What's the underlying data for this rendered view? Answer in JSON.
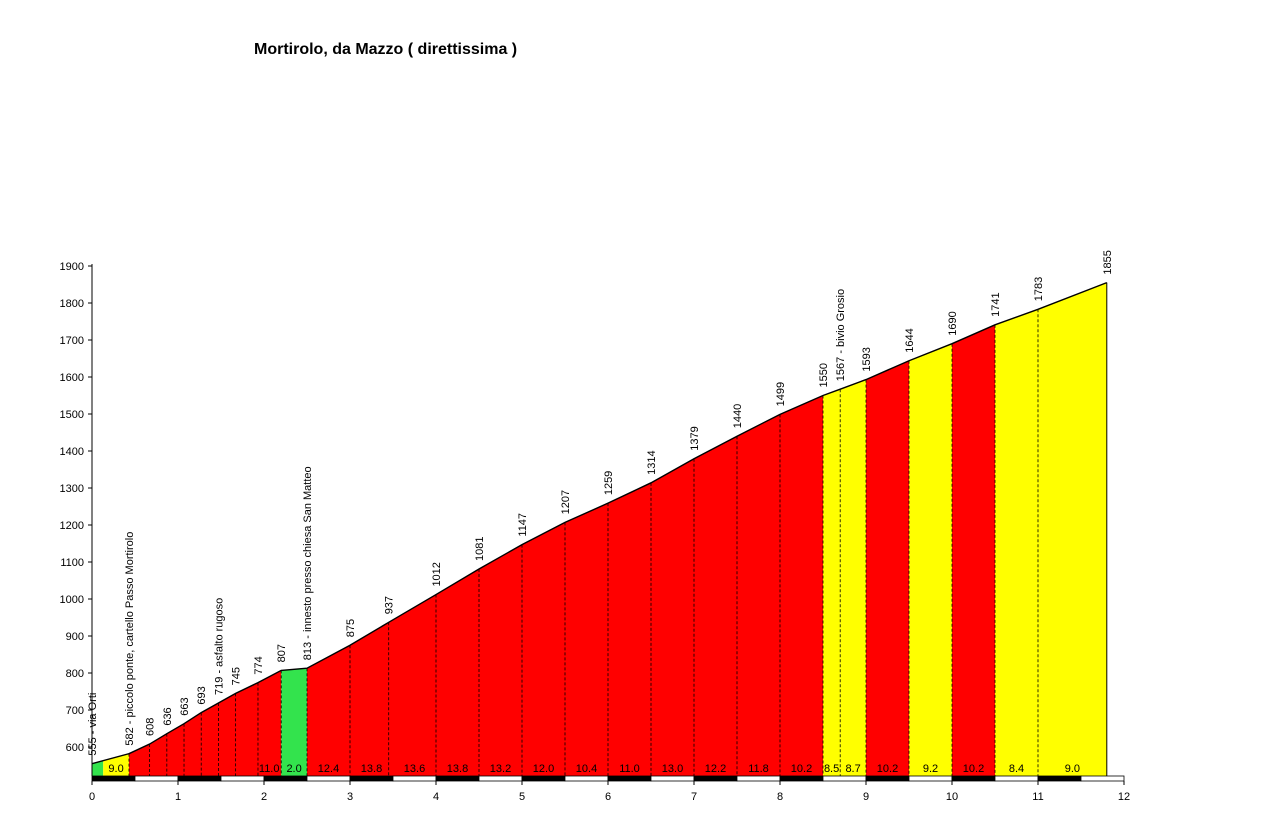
{
  "chart_data": {
    "type": "area",
    "title": "Mortirolo, da Mazzo ( direttissima )",
    "xlim": [
      0,
      12
    ],
    "ylim": [
      515,
      1900
    ],
    "x_ticks": [
      "0",
      "1",
      "2",
      "3",
      "4",
      "5",
      "6",
      "7",
      "8",
      "9",
      "10",
      "11",
      "12"
    ],
    "y_ticks": [
      "600",
      "700",
      "800",
      "900",
      "1000",
      "1100",
      "1200",
      "1300",
      "1400",
      "1500",
      "1600",
      "1700",
      "1800",
      "1900"
    ],
    "grid": false,
    "colors": {
      "green": "#33e34d",
      "yellow": "#ffff00",
      "red": "#ff0000",
      "outline": "#000000"
    },
    "points": [
      {
        "x": 0.0,
        "y": 555,
        "label": "555 - via Orti"
      },
      {
        "x": 0.43,
        "y": 582,
        "label": "582 - piccolo ponte, cartello Passo Mortirolo"
      },
      {
        "x": 0.67,
        "y": 608,
        "label": "608"
      },
      {
        "x": 0.87,
        "y": 636,
        "label": "636"
      },
      {
        "x": 1.07,
        "y": 663,
        "label": "663"
      },
      {
        "x": 1.27,
        "y": 693,
        "label": "693"
      },
      {
        "x": 1.47,
        "y": 719,
        "label": "719 - asfalto rugoso"
      },
      {
        "x": 1.67,
        "y": 745,
        "label": "745"
      },
      {
        "x": 1.93,
        "y": 774,
        "label": "774"
      },
      {
        "x": 2.2,
        "y": 807,
        "label": "807"
      },
      {
        "x": 2.5,
        "y": 813,
        "label": "813 - innesto presso chiesa San Matteo"
      },
      {
        "x": 3.0,
        "y": 875,
        "label": "875"
      },
      {
        "x": 3.45,
        "y": 937,
        "label": "937"
      },
      {
        "x": 4.0,
        "y": 1012,
        "label": "1012"
      },
      {
        "x": 4.5,
        "y": 1081,
        "label": "1081"
      },
      {
        "x": 5.0,
        "y": 1147,
        "label": "1147"
      },
      {
        "x": 5.5,
        "y": 1207,
        "label": "1207"
      },
      {
        "x": 6.0,
        "y": 1259,
        "label": "1259"
      },
      {
        "x": 6.5,
        "y": 1314,
        "label": "1314"
      },
      {
        "x": 7.0,
        "y": 1379,
        "label": "1379"
      },
      {
        "x": 7.5,
        "y": 1440,
        "label": "1440"
      },
      {
        "x": 8.0,
        "y": 1499,
        "label": "1499"
      },
      {
        "x": 8.5,
        "y": 1550,
        "label": "1550"
      },
      {
        "x": 8.7,
        "y": 1567,
        "label": "1567 - bivio Grosio"
      },
      {
        "x": 9.0,
        "y": 1593,
        "label": "1593"
      },
      {
        "x": 9.5,
        "y": 1644,
        "label": "1644"
      },
      {
        "x": 10.0,
        "y": 1690,
        "label": "1690"
      },
      {
        "x": 10.5,
        "y": 1741,
        "label": "1741"
      },
      {
        "x": 11.0,
        "y": 1783,
        "label": "1783"
      },
      {
        "x": 11.8,
        "y": 1855,
        "label": "1855"
      }
    ],
    "segments": [
      {
        "start": 0.0,
        "end": 0.13,
        "color": "green",
        "gradient": ""
      },
      {
        "start": 0.13,
        "end": 0.43,
        "color": "yellow",
        "gradient": "9.0"
      },
      {
        "start": 0.43,
        "end": 2.2,
        "color": "red",
        "gradient": "11.0"
      },
      {
        "start": 2.2,
        "end": 2.5,
        "color": "green",
        "gradient": "2.0"
      },
      {
        "start": 2.5,
        "end": 3.0,
        "color": "red",
        "gradient": "12.4"
      },
      {
        "start": 3.0,
        "end": 3.5,
        "color": "red",
        "gradient": "13.8"
      },
      {
        "start": 3.5,
        "end": 4.0,
        "color": "red",
        "gradient": "13.6"
      },
      {
        "start": 4.0,
        "end": 4.5,
        "color": "red",
        "gradient": "13.8"
      },
      {
        "start": 4.5,
        "end": 5.0,
        "color": "red",
        "gradient": "13.2"
      },
      {
        "start": 5.0,
        "end": 5.5,
        "color": "red",
        "gradient": "12.0"
      },
      {
        "start": 5.5,
        "end": 6.0,
        "color": "red",
        "gradient": "10.4"
      },
      {
        "start": 6.0,
        "end": 6.5,
        "color": "red",
        "gradient": "11.0"
      },
      {
        "start": 6.5,
        "end": 7.0,
        "color": "red",
        "gradient": "13.0"
      },
      {
        "start": 7.0,
        "end": 7.5,
        "color": "red",
        "gradient": "12.2"
      },
      {
        "start": 7.5,
        "end": 8.0,
        "color": "red",
        "gradient": "11.8"
      },
      {
        "start": 8.0,
        "end": 8.5,
        "color": "red",
        "gradient": "10.2"
      },
      {
        "start": 8.5,
        "end": 8.7,
        "color": "yellow",
        "gradient": "8.5"
      },
      {
        "start": 8.7,
        "end": 9.0,
        "color": "yellow",
        "gradient": "8.7"
      },
      {
        "start": 9.0,
        "end": 9.5,
        "color": "red",
        "gradient": "10.2"
      },
      {
        "start": 9.5,
        "end": 10.0,
        "color": "yellow",
        "gradient": "9.2"
      },
      {
        "start": 10.0,
        "end": 10.5,
        "color": "red",
        "gradient": "10.2"
      },
      {
        "start": 10.5,
        "end": 11.0,
        "color": "yellow",
        "gradient": "8.4"
      },
      {
        "start": 11.0,
        "end": 11.8,
        "color": "yellow",
        "gradient": "9.0"
      }
    ]
  }
}
